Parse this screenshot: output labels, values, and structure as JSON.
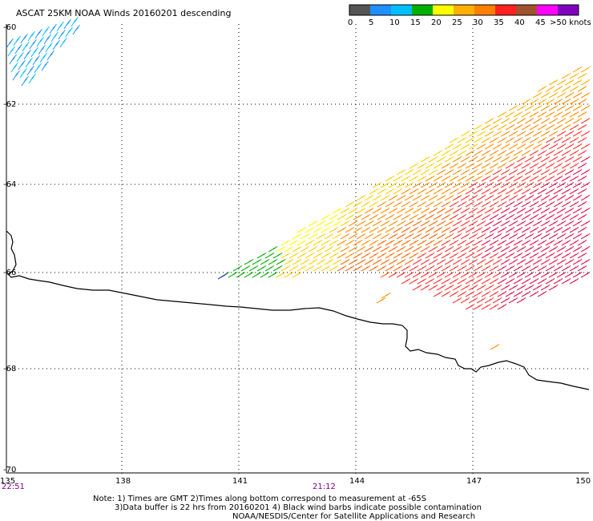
{
  "title": "ASCAT 25KM NOAA Winds 20160201 descending",
  "colorbar": {
    "ticks": [
      "0",
      "5",
      "10",
      "15",
      "20",
      "25",
      "30",
      "35",
      "40",
      "45",
      ">50 knots"
    ],
    "colors": [
      "#555555",
      "#1e90ff",
      "#00bfff",
      "#00b000",
      "#ffff00",
      "#ffb000",
      "#ff7f00",
      "#ff2020",
      "#a0522d",
      "#ff00ff",
      "#8000c0"
    ]
  },
  "axes": {
    "x_ticks": [
      "135",
      "138",
      "141",
      "144",
      "147",
      "150"
    ],
    "y_ticks": [
      "-60",
      "-62",
      "-64",
      "-66",
      "-68",
      "-70"
    ]
  },
  "times": {
    "left": "22:51",
    "middle": "21:12"
  },
  "notes": [
    "Note: 1) Times are GMT 2)Times along bottom correspond to measurement at -65S",
    "3)Data buffer is 22 hrs from 20160201 4) Black wind barbs indicate possible contamination",
    "NOAA/NESDIS/Center for Satellite Applications and Research"
  ],
  "barb_swaths": [
    {
      "region": "northwest corner",
      "colors": [
        "#1e90ff",
        "#00bfff"
      ]
    },
    {
      "region": "main swath",
      "colors": [
        "#00b000",
        "#ffff00",
        "#ffd000",
        "#ffb000",
        "#ff8c00",
        "#ff6600",
        "#ff3030",
        "#e0104a"
      ]
    }
  ]
}
